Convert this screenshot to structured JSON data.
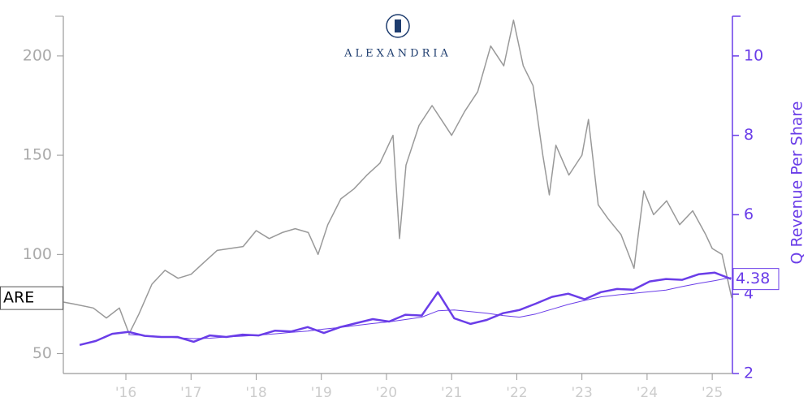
{
  "chart_data": {
    "type": "line",
    "logo_text": "ALEXANDRIA",
    "y2label": "Q Revenue Per Share",
    "xlim": [
      2015.04,
      2025.31
    ],
    "xticks": [
      {
        "value": 2016,
        "label": "'16"
      },
      {
        "value": 2017,
        "label": "'17"
      },
      {
        "value": 2018,
        "label": "'18"
      },
      {
        "value": 2019,
        "label": "'19"
      },
      {
        "value": 2020,
        "label": "'20"
      },
      {
        "value": 2021,
        "label": "'21"
      },
      {
        "value": 2022,
        "label": "'22"
      },
      {
        "value": 2023,
        "label": "'23"
      },
      {
        "value": 2024,
        "label": "'24"
      },
      {
        "value": 2025,
        "label": "'25"
      }
    ],
    "ylim": [
      40,
      220
    ],
    "yticks": [
      50,
      100,
      150,
      200
    ],
    "y2lim": [
      2,
      11
    ],
    "y2ticks": [
      2,
      4,
      6,
      8,
      10
    ],
    "series": [
      {
        "name": "ARE",
        "color": "#999999",
        "x": [
          2015.04,
          2015.2,
          2015.5,
          2015.7,
          2015.9,
          2016.05,
          2016.2,
          2016.4,
          2016.6,
          2016.8,
          2017.0,
          2017.2,
          2017.4,
          2017.6,
          2017.8,
          2018.0,
          2018.2,
          2018.4,
          2018.6,
          2018.8,
          2018.95,
          2019.1,
          2019.3,
          2019.5,
          2019.7,
          2019.9,
          2020.1,
          2020.2,
          2020.3,
          2020.5,
          2020.7,
          2020.9,
          2021.0,
          2021.2,
          2021.4,
          2021.6,
          2021.8,
          2021.95,
          2022.1,
          2022.25,
          2022.4,
          2022.5,
          2022.6,
          2022.8,
          2023.0,
          2023.1,
          2023.25,
          2023.4,
          2023.6,
          2023.8,
          2023.95,
          2024.1,
          2024.3,
          2024.5,
          2024.7,
          2024.9,
          2025.0,
          2025.15,
          2025.3
        ],
        "values": [
          76,
          75,
          73,
          68,
          73,
          60,
          70,
          85,
          92,
          88,
          90,
          96,
          102,
          103,
          104,
          112,
          108,
          111,
          113,
          111,
          100,
          115,
          128,
          133,
          140,
          146,
          160,
          108,
          145,
          165,
          175,
          165,
          160,
          172,
          182,
          205,
          195,
          218,
          195,
          185,
          150,
          130,
          155,
          140,
          150,
          168,
          125,
          118,
          110,
          93,
          132,
          120,
          127,
          115,
          122,
          110,
          103,
          100,
          78
        ]
      },
      {
        "color": "#6a3de8",
        "axis": "y2",
        "x": [
          2015.29,
          2015.54,
          2015.79,
          2016.04,
          2016.29,
          2016.54,
          2016.79,
          2017.04,
          2017.29,
          2017.54,
          2017.79,
          2018.04,
          2018.29,
          2018.54,
          2018.79,
          2019.04,
          2019.29,
          2019.54,
          2019.79,
          2020.04,
          2020.29,
          2020.54,
          2020.79,
          2021.04,
          2021.29,
          2021.54,
          2021.79,
          2022.04,
          2022.29,
          2022.54,
          2022.79,
          2023.04,
          2023.29,
          2023.54,
          2023.79,
          2024.04,
          2024.29,
          2024.54,
          2024.79,
          2025.04,
          2025.29
        ],
        "values": [
          2.72,
          2.82,
          3.0,
          3.05,
          2.95,
          2.92,
          2.92,
          2.8,
          2.96,
          2.92,
          2.98,
          2.96,
          3.08,
          3.06,
          3.17,
          3.02,
          3.17,
          3.27,
          3.37,
          3.31,
          3.48,
          3.46,
          4.05,
          3.39,
          3.25,
          3.35,
          3.52,
          3.6,
          3.76,
          3.93,
          4.01,
          3.87,
          4.05,
          4.13,
          4.11,
          4.32,
          4.38,
          4.36,
          4.5,
          4.54,
          4.38
        ]
      },
      {
        "color": "#6a3de8",
        "axis": "y2",
        "x": [
          2015.29,
          2015.54,
          2015.79,
          2016.04,
          2016.29,
          2016.54,
          2016.79,
          2017.04,
          2017.29,
          2017.54,
          2017.79,
          2018.04,
          2018.29,
          2018.54,
          2018.79,
          2019.04,
          2019.29,
          2019.54,
          2019.79,
          2020.04,
          2020.29,
          2020.54,
          2020.79,
          2021.04,
          2021.29,
          2021.54,
          2021.79,
          2022.04,
          2022.29,
          2022.54,
          2022.79,
          2023.04,
          2023.29,
          2023.54,
          2023.79,
          2024.04,
          2024.29,
          2024.54,
          2024.79,
          2025.04,
          2025.29
        ],
        "values": [
          null,
          null,
          null,
          2.98,
          2.96,
          2.93,
          2.9,
          2.88,
          2.89,
          2.92,
          2.94,
          2.97,
          3.0,
          3.04,
          3.07,
          3.12,
          3.16,
          3.21,
          3.26,
          3.3,
          3.36,
          3.42,
          3.58,
          3.6,
          3.56,
          3.52,
          3.46,
          3.42,
          3.5,
          3.62,
          3.74,
          3.84,
          3.93,
          3.98,
          4.02,
          4.06,
          4.1,
          4.19,
          4.27,
          4.34,
          4.42
        ]
      }
    ]
  }
}
